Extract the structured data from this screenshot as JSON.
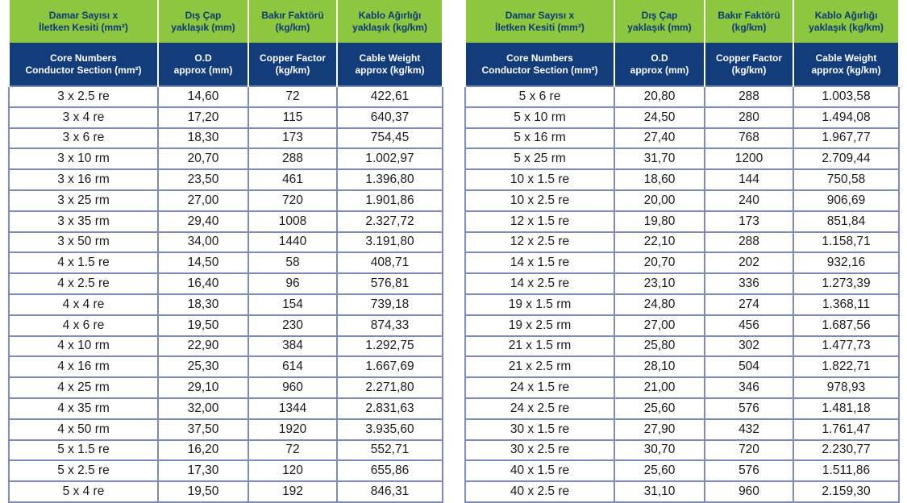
{
  "colors": {
    "header_tr_bg": "#8dc63f",
    "header_tr_text": "#0b3a78",
    "header_en_bg": "#123c7a",
    "header_en_text": "#ffffff",
    "cell_border": "#7d8bb6"
  },
  "headers_tr": [
    {
      "line1": "Damar Sayısı x",
      "line2": "İletken Kesiti (mm²)"
    },
    {
      "line1": "Dış Çap",
      "line2": "yaklaşık (mm)"
    },
    {
      "line1": "Bakır Faktörü",
      "line2": "(kg/km)"
    },
    {
      "line1": "Kablo Ağırlığı",
      "line2": "yaklaşık (kg/km)"
    }
  ],
  "headers_en": [
    {
      "line1": "Core Numbers",
      "line2": "Conductor Section (mm²)"
    },
    {
      "line1": "O.D",
      "line2": "approx (mm)"
    },
    {
      "line1": "Copper Factor",
      "line2": "(kg/km)"
    },
    {
      "line1": "Cable Weight",
      "line2": "approx (kg/km)"
    }
  ],
  "left_table": [
    [
      "3 x 2.5 re",
      "14,60",
      "72",
      "422,61"
    ],
    [
      "3 x 4 re",
      "17,20",
      "115",
      "640,37"
    ],
    [
      "3 x 6 re",
      "18,30",
      "173",
      "754,45"
    ],
    [
      "3 x 10 rm",
      "20,70",
      "288",
      "1.002,97"
    ],
    [
      "3 x 16 rm",
      "23,50",
      "461",
      "1.396,80"
    ],
    [
      "3 x 25 rm",
      "27,00",
      "720",
      "1.901,86"
    ],
    [
      "3 x 35 rm",
      "29,40",
      "1008",
      "2.327,72"
    ],
    [
      "3 x 50 rm",
      "34,00",
      "1440",
      "3.191,80"
    ],
    [
      "4 x 1.5 re",
      "14,50",
      "58",
      "408,71"
    ],
    [
      "4 x 2.5 re",
      "16,40",
      "96",
      "576,81"
    ],
    [
      "4 x 4 re",
      "18,30",
      "154",
      "739,18"
    ],
    [
      "4 x 6 re",
      "19,50",
      "230",
      "874,33"
    ],
    [
      "4 x 10 rm",
      "22,90",
      "384",
      "1.292,75"
    ],
    [
      "4 x 16 rm",
      "25,30",
      "614",
      "1.667,69"
    ],
    [
      "4 x 25 rm",
      "29,10",
      "960",
      "2.271,80"
    ],
    [
      "4 x 35 rm",
      "32,00",
      "1344",
      "2.831,63"
    ],
    [
      "4 x 50 rm",
      "37,50",
      "1920",
      "3.935,60"
    ],
    [
      "5 x 1.5 re",
      "16,20",
      "72",
      "552,71"
    ],
    [
      "5 x 2.5 re",
      "17,30",
      "120",
      "655,86"
    ],
    [
      "5 x 4 re",
      "19,50",
      "192",
      "846,31"
    ]
  ],
  "right_table": [
    [
      "5 x 6 re",
      "20,80",
      "288",
      "1.003,58"
    ],
    [
      "5 x 10 rm",
      "24,50",
      "280",
      "1.494,08"
    ],
    [
      "5 x 16 rm",
      "27,40",
      "768",
      "1.967,77"
    ],
    [
      "5 x 25 rm",
      "31,70",
      "1200",
      "2.709,44"
    ],
    [
      "10 x 1.5 re",
      "18,60",
      "144",
      "750,58"
    ],
    [
      "10 x 2.5 re",
      "20,00",
      "240",
      "906,69"
    ],
    [
      "12 x 1.5 re",
      "19,80",
      "173",
      "851,84"
    ],
    [
      "12 x 2.5 re",
      "22,10",
      "288",
      "1.158,71"
    ],
    [
      "14 x 1.5 re",
      "20,70",
      "202",
      "932,16"
    ],
    [
      "14 x 2.5 re",
      "23,10",
      "336",
      "1.273,39"
    ],
    [
      "19 x 1.5 rm",
      "24,80",
      "274",
      "1.368,11"
    ],
    [
      "19 x 2.5 rm",
      "27,00",
      "456",
      "1.687,56"
    ],
    [
      "21 x 1.5 rm",
      "25,80",
      "302",
      "1.477,73"
    ],
    [
      "21 x 2.5 rm",
      "28,10",
      "504",
      "1.822,71"
    ],
    [
      "24 x 1.5 re",
      "21,00",
      "346",
      "978,93"
    ],
    [
      "24 x 2.5 re",
      "25,60",
      "576",
      "1.481,18"
    ],
    [
      "30 x 1.5 re",
      "27,90",
      "432",
      "1.761,47"
    ],
    [
      "30 x 2.5 re",
      "30,70",
      "720",
      "2.230,77"
    ],
    [
      "40 x 1.5 re",
      "25,60",
      "576",
      "1.511,86"
    ],
    [
      "40 x 2.5 re",
      "31,10",
      "960",
      "2.159,30"
    ]
  ]
}
